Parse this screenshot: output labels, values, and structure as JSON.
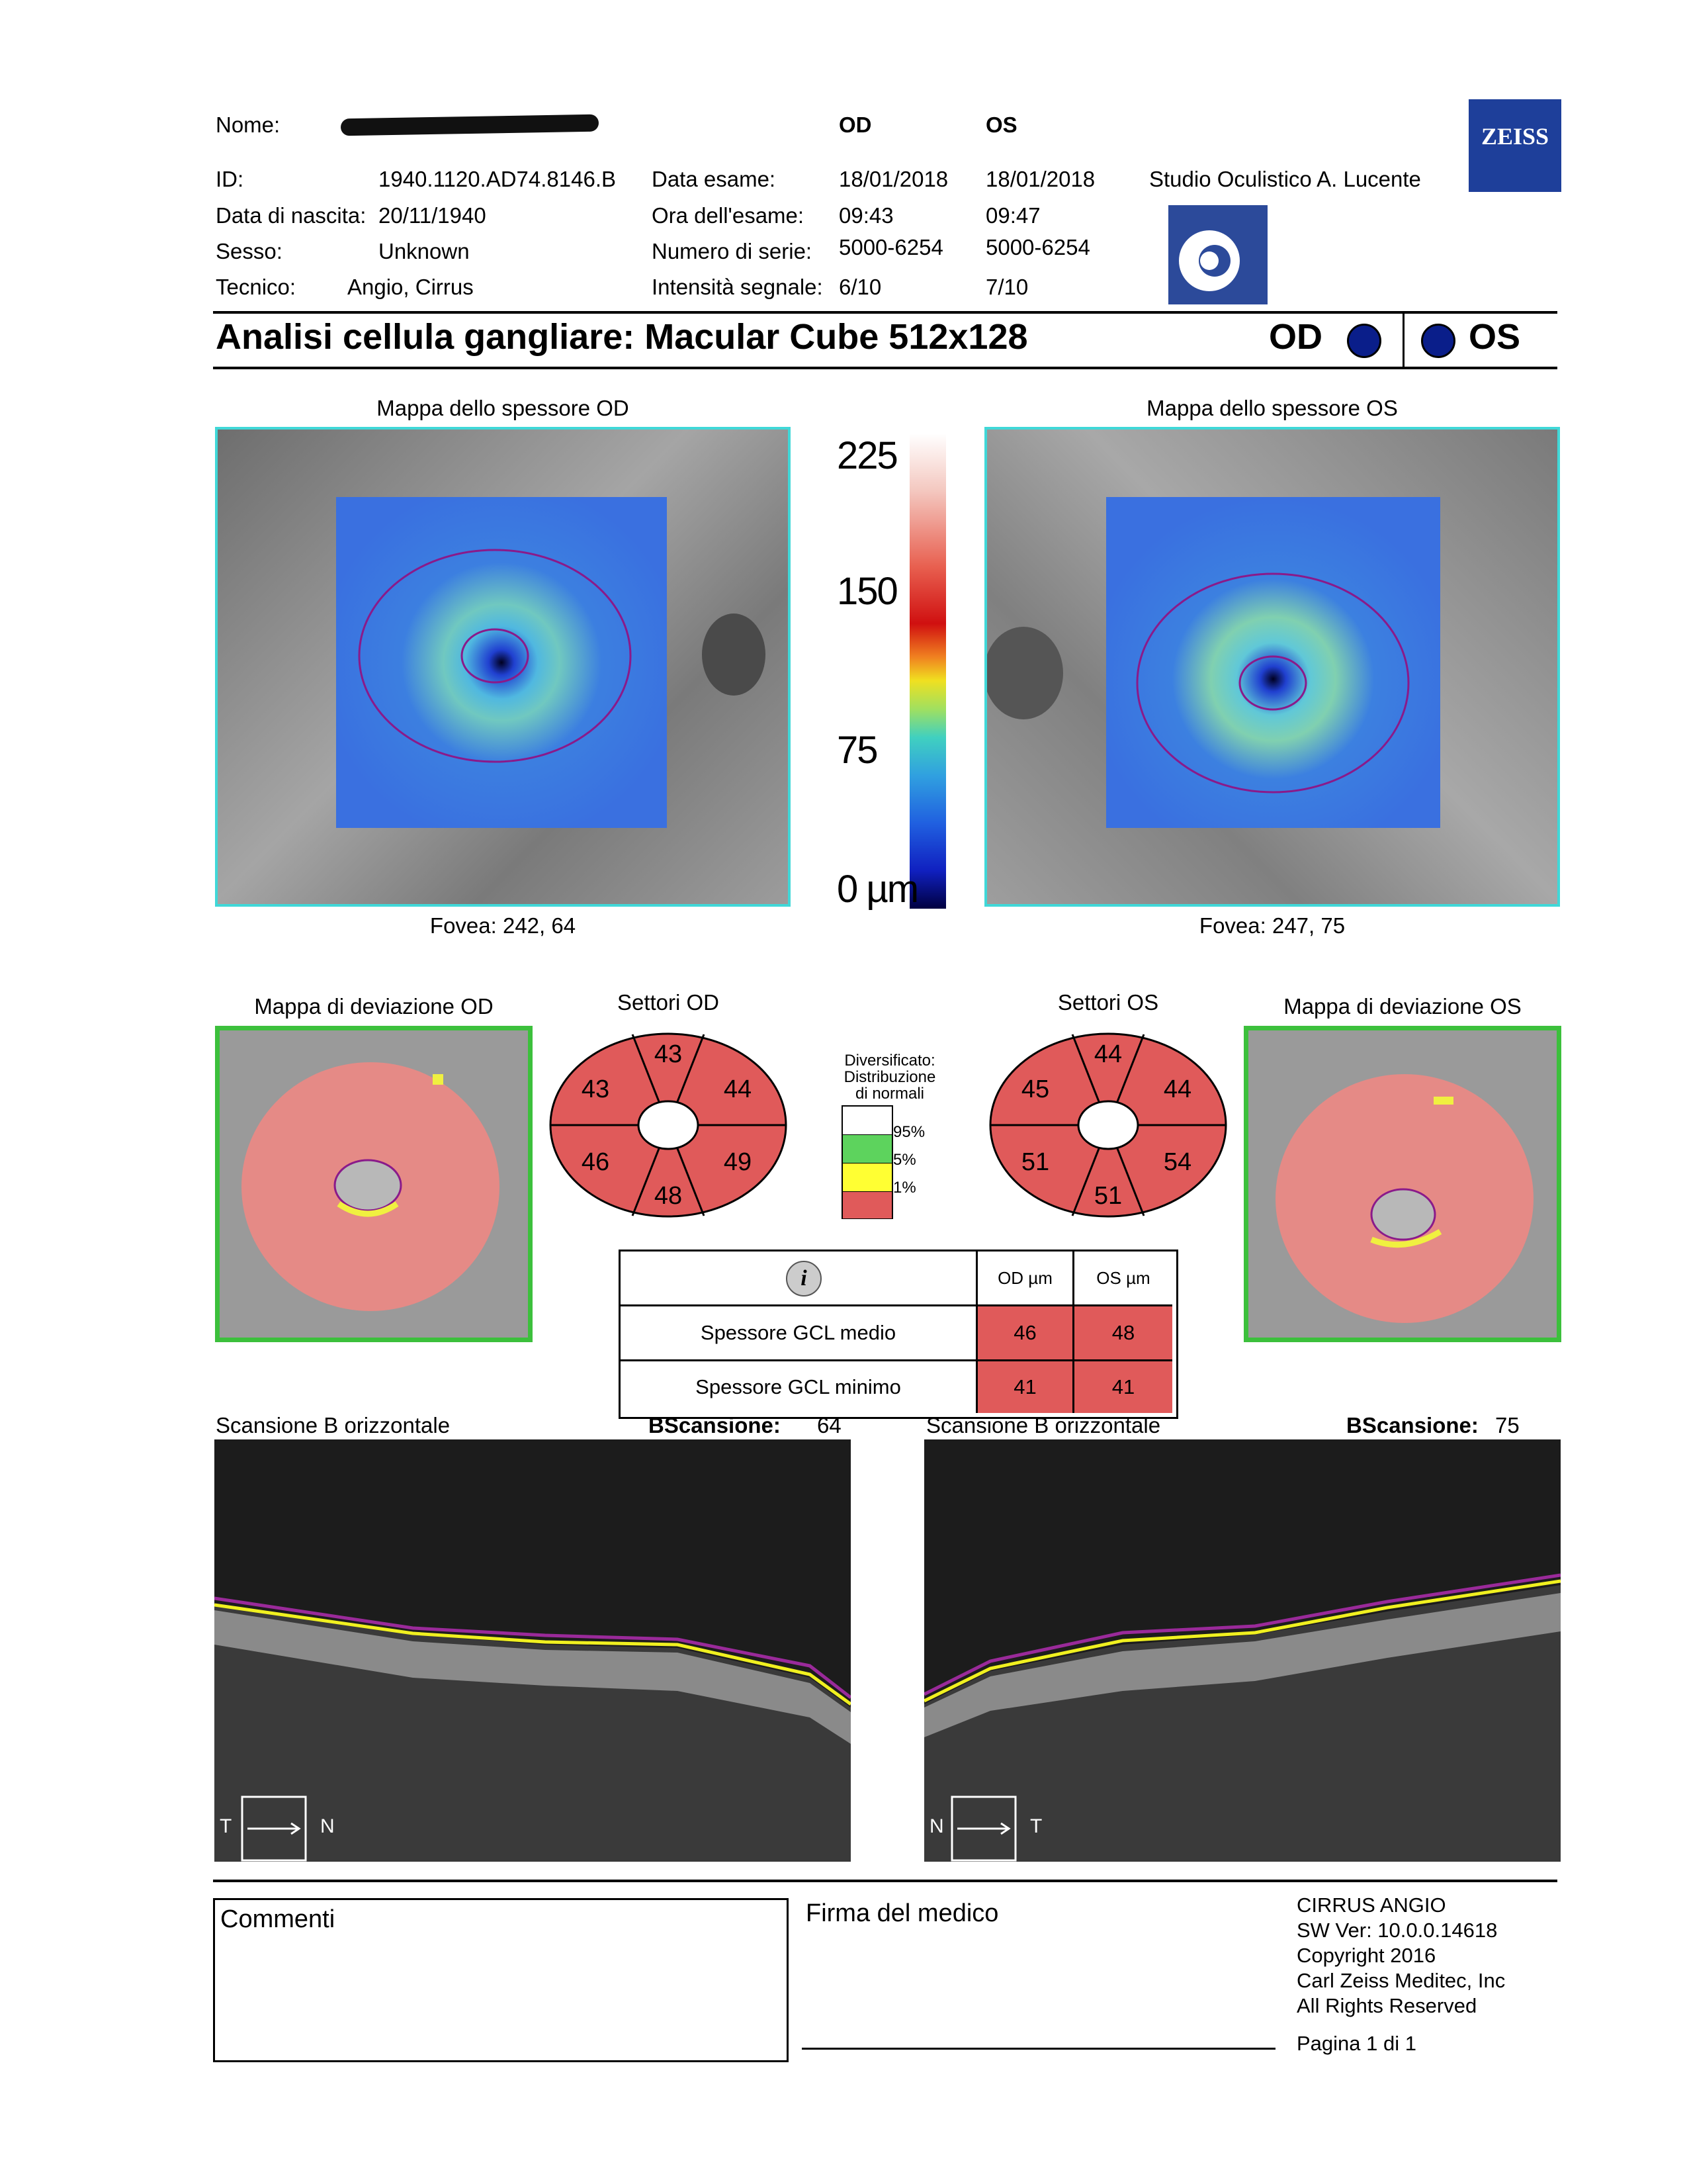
{
  "header": {
    "nome_label": "Nome:",
    "id_label": "ID:",
    "id_value": "1940.1120.AD74.8146.B",
    "dob_label": "Data di nascita:",
    "dob_value": "20/11/1940",
    "sex_label": "Sesso:",
    "sex_value": "Unknown",
    "tech_label": "Tecnico:",
    "tech_value": "Angio, Cirrus",
    "od": "OD",
    "os": "OS",
    "exam_date_label": "Data esame:",
    "exam_date_od": "18/01/2018",
    "exam_date_os": "18/01/2018",
    "exam_time_label": "Ora dell'esame:",
    "exam_time_od": "09:43",
    "exam_time_os": "09:47",
    "serial_label": "Numero di serie:",
    "serial_od": "5000-6254",
    "serial_os": "5000-6254",
    "signal_label": "Intensità segnale:",
    "signal_od": "6/10",
    "signal_os": "7/10",
    "studio": "Studio Oculistico A. Lucente",
    "brand": "ZEISS"
  },
  "title": "Analisi cellula gangliare: Macular Cube 512x128",
  "eyes": {
    "od": "OD",
    "os": "OS"
  },
  "thickness": {
    "od_title": "Mappa dello spessore OD",
    "os_title": "Mappa dello spessore OS",
    "od_fovea": "Fovea: 242, 64",
    "os_fovea": "Fovea: 247, 75",
    "scale": [
      "225",
      "150",
      "75",
      "0 µm"
    ]
  },
  "deviation": {
    "od_title": "Mappa di deviazione OD",
    "os_title": "Mappa di deviazione OS"
  },
  "sectors": {
    "od_title": "Settori OD",
    "os_title": "Settori OS",
    "od": {
      "top": "43",
      "upper_left": "43",
      "upper_right": "44",
      "lower_left": "46",
      "lower_right": "49",
      "bottom": "48"
    },
    "os": {
      "top": "44",
      "upper_left": "45",
      "upper_right": "44",
      "lower_left": "51",
      "lower_right": "54",
      "bottom": "51"
    }
  },
  "legend": {
    "title": [
      "Diversificato:",
      "Distribuzione",
      "di normali"
    ],
    "levels": [
      "95%",
      "5%",
      "1%"
    ],
    "colors": [
      "#ffffff",
      "#5dd35d",
      "#ffff33",
      "#e05a5a"
    ]
  },
  "gcl_table": {
    "info_icon": "i",
    "col_od": "OD µm",
    "col_os": "OS µm",
    "rows": [
      {
        "label": "Spessore GCL medio",
        "od": "46",
        "os": "48"
      },
      {
        "label": "Spessore GCL minimo",
        "od": "41",
        "os": "41"
      }
    ]
  },
  "bscan": {
    "od_title": "Scansione B orizzontale",
    "os_title": "Scansione B orizzontale",
    "label": "BScansione:",
    "od_value": "64",
    "os_value": "75",
    "od_orient": [
      "T",
      "N"
    ],
    "os_orient": [
      "N",
      "T"
    ]
  },
  "footer": {
    "comments": "Commenti",
    "signature": "Firma del medico",
    "info": [
      "CIRRUS ANGIO",
      "SW Ver: 10.0.0.14618",
      "Copyright 2016",
      "Carl Zeiss Meditec, Inc",
      "All Rights Reserved"
    ],
    "page": "Pagina 1 di 1"
  }
}
